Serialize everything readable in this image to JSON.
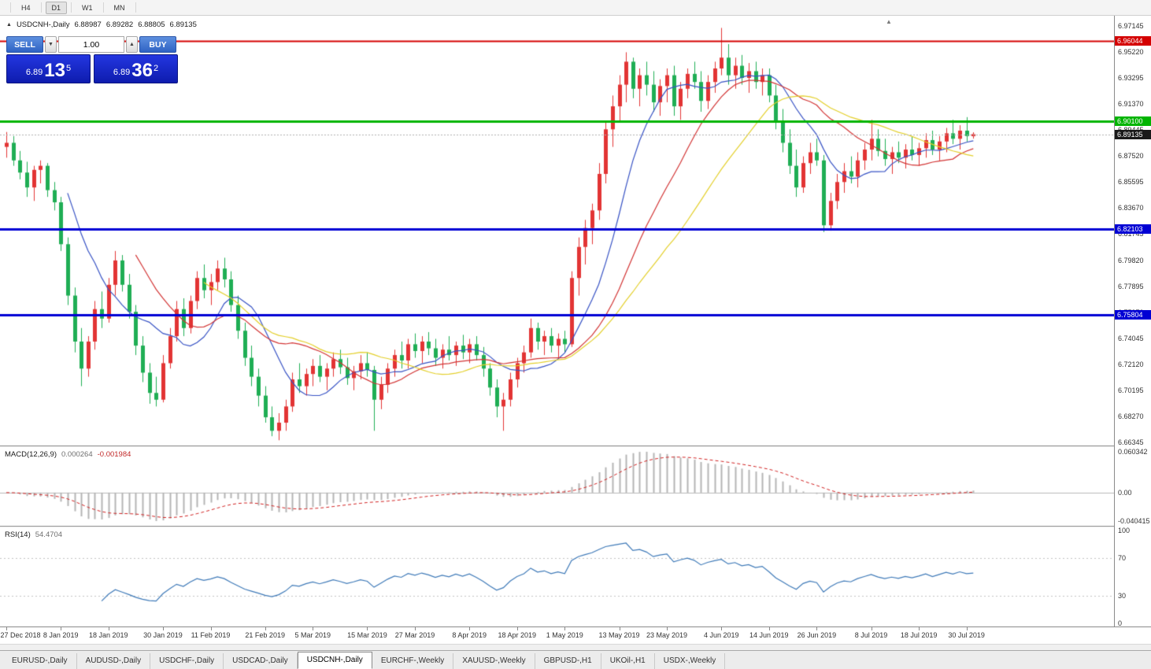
{
  "toolbar": {
    "timeframes": [
      {
        "label": "H4",
        "active": false
      },
      {
        "label": "D1",
        "active": true
      },
      {
        "label": "W1",
        "active": false
      },
      {
        "label": "MN",
        "active": false
      }
    ]
  },
  "chart_header": {
    "collapse_icon": "up-triangle",
    "symbol": "USDCNH-,Daily",
    "open": "6.88987",
    "high": "6.89282",
    "low": "6.88805",
    "close": "6.89135"
  },
  "one_click": {
    "sell_label": "SELL",
    "buy_label": "BUY",
    "lot": "1.00",
    "sell": {
      "base": "6.89",
      "big": "13",
      "sup": "5"
    },
    "buy": {
      "base": "6.89",
      "big": "36",
      "sup": "2"
    }
  },
  "price_axis": {
    "ticks": [
      "6.97145",
      "6.95220",
      "6.93295",
      "6.91370",
      "6.89445",
      "6.87520",
      "6.85595",
      "6.83670",
      "6.81745",
      "6.79820",
      "6.77895",
      "6.75970",
      "6.74045",
      "6.72120",
      "6.70195",
      "6.68270",
      "6.66345"
    ]
  },
  "hlines": [
    {
      "value": 6.96044,
      "label": "6.96044",
      "color": "#d40000",
      "width": 2
    },
    {
      "value": 6.901,
      "label": "6.90100",
      "color": "#00b400",
      "width": 3
    },
    {
      "value": 6.82103,
      "label": "6.82103",
      "color": "#0000d4",
      "width": 3
    },
    {
      "value": 6.75804,
      "label": "6.75804",
      "color": "#0000d4",
      "width": 3
    }
  ],
  "current_price": {
    "value": 6.89135,
    "label": "6.89135",
    "badge_color": "#1a1a1a"
  },
  "indicators": {
    "macd": {
      "title": "MACD(12,26,9)",
      "value_main": "0.000264",
      "value_signal": "-0.001984",
      "axis_max": "0.060342",
      "axis_zero": "0.00",
      "axis_min": "-0.040415"
    },
    "rsi": {
      "title": "RSI(14)",
      "value": "54.4704",
      "axis": [
        "100",
        "70",
        "30",
        "0"
      ],
      "levels": [
        70,
        30
      ]
    }
  },
  "time_axis": {
    "labels": [
      "27 Dec 2018",
      "8 Jan 2019",
      "18 Jan 2019",
      "30 Jan 2019",
      "11 Feb 2019",
      "21 Feb 2019",
      "5 Mar 2019",
      "15 Mar 2019",
      "27 Mar 2019",
      "8 Apr 2019",
      "18 Apr 2019",
      "1 May 2019",
      "13 May 2019",
      "23 May 2019",
      "4 Jun 2019",
      "14 Jun 2019",
      "26 Jun 2019",
      "8 Jul 2019",
      "18 Jul 2019",
      "30 Jul 2019"
    ],
    "indices": [
      0,
      8,
      15,
      23,
      30,
      38,
      45,
      53,
      60,
      68,
      75,
      82,
      90,
      97,
      105,
      112,
      119,
      127,
      134,
      141
    ]
  },
  "tabs": [
    {
      "label": "EURUSD-,Daily",
      "active": false
    },
    {
      "label": "AUDUSD-,Daily",
      "active": false
    },
    {
      "label": "USDCHF-,Daily",
      "active": false
    },
    {
      "label": "USDCAD-,Daily",
      "active": false
    },
    {
      "label": "USDCNH-,Daily",
      "active": true
    },
    {
      "label": "EURCHF-,Weekly",
      "active": false
    },
    {
      "label": "XAUUSD-,Weekly",
      "active": false
    },
    {
      "label": "GBPUSD-,H1",
      "active": false
    },
    {
      "label": "UKOil-,H1",
      "active": false
    },
    {
      "label": "USDX-,Weekly",
      "active": false
    }
  ],
  "chart_data": {
    "type": "candlestick",
    "symbol": "USDCNH",
    "timeframe": "Daily",
    "ylim": [
      6.66345,
      6.97145
    ],
    "up_color": "#e23434",
    "down_color": "#1fae54",
    "moving_averages": [
      {
        "period": 10,
        "color": "#3752c4",
        "name": "MA10"
      },
      {
        "period": 20,
        "color": "#d23434",
        "name": "MA20"
      },
      {
        "period": 30,
        "color": "#e3cf2a",
        "name": "MA30"
      }
    ],
    "macd_params": [
      12,
      26,
      9
    ],
    "rsi_period": 14,
    "candles": [
      [
        6.882,
        6.893,
        6.874,
        6.885
      ],
      [
        6.885,
        6.89,
        6.868,
        6.872
      ],
      [
        6.872,
        6.879,
        6.858,
        6.863
      ],
      [
        6.863,
        6.871,
        6.845,
        6.852
      ],
      [
        6.852,
        6.868,
        6.842,
        6.865
      ],
      [
        6.865,
        6.872,
        6.855,
        6.868
      ],
      [
        6.868,
        6.87,
        6.845,
        6.85
      ],
      [
        6.85,
        6.856,
        6.835,
        6.841
      ],
      [
        6.841,
        6.845,
        6.805,
        6.81
      ],
      [
        6.81,
        6.815,
        6.765,
        6.772
      ],
      [
        6.772,
        6.778,
        6.73,
        6.738
      ],
      [
        6.738,
        6.748,
        6.705,
        6.718
      ],
      [
        6.718,
        6.742,
        6.712,
        6.738
      ],
      [
        6.738,
        6.768,
        6.732,
        6.762
      ],
      [
        6.762,
        6.775,
        6.748,
        6.755
      ],
      [
        6.755,
        6.785,
        6.752,
        6.78
      ],
      [
        6.78,
        6.805,
        6.772,
        6.798
      ],
      [
        6.798,
        6.802,
        6.775,
        6.78
      ],
      [
        6.78,
        6.788,
        6.755,
        6.76
      ],
      [
        6.76,
        6.765,
        6.728,
        6.735
      ],
      [
        6.735,
        6.742,
        6.708,
        6.715
      ],
      [
        6.715,
        6.722,
        6.692,
        6.7
      ],
      [
        6.7,
        6.712,
        6.69,
        6.695
      ],
      [
        6.695,
        6.728,
        6.693,
        6.722
      ],
      [
        6.722,
        6.748,
        6.718,
        6.742
      ],
      [
        6.742,
        6.768,
        6.738,
        6.762
      ],
      [
        6.762,
        6.77,
        6.742,
        6.748
      ],
      [
        6.748,
        6.772,
        6.744,
        6.768
      ],
      [
        6.768,
        6.79,
        6.762,
        6.785
      ],
      [
        6.785,
        6.795,
        6.77,
        6.776
      ],
      [
        6.776,
        6.788,
        6.765,
        6.782
      ],
      [
        6.782,
        6.798,
        6.776,
        6.792
      ],
      [
        6.792,
        6.8,
        6.778,
        6.784
      ],
      [
        6.784,
        6.79,
        6.76,
        6.765
      ],
      [
        6.765,
        6.772,
        6.74,
        6.746
      ],
      [
        6.746,
        6.752,
        6.72,
        6.726
      ],
      [
        6.726,
        6.735,
        6.705,
        6.712
      ],
      [
        6.712,
        6.718,
        6.69,
        6.698
      ],
      [
        6.698,
        6.705,
        6.678,
        6.682
      ],
      [
        6.682,
        6.69,
        6.668,
        6.672
      ],
      [
        6.672,
        6.685,
        6.665,
        6.678
      ],
      [
        6.678,
        6.695,
        6.672,
        6.69
      ],
      [
        6.69,
        6.715,
        6.686,
        6.71
      ],
      [
        6.71,
        6.722,
        6.7,
        6.705
      ],
      [
        6.705,
        6.718,
        6.698,
        6.714
      ],
      [
        6.714,
        6.725,
        6.705,
        6.72
      ],
      [
        6.72,
        6.728,
        6.708,
        6.712
      ],
      [
        6.712,
        6.722,
        6.702,
        6.718
      ],
      [
        6.718,
        6.73,
        6.712,
        6.725
      ],
      [
        6.725,
        6.732,
        6.714,
        6.719
      ],
      [
        6.719,
        6.726,
        6.706,
        6.711
      ],
      [
        6.711,
        6.72,
        6.702,
        6.716
      ],
      [
        6.716,
        6.728,
        6.71,
        6.722
      ],
      [
        6.722,
        6.73,
        6.712,
        6.717
      ],
      [
        6.717,
        6.72,
        6.672,
        6.695
      ],
      [
        6.695,
        6.712,
        6.688,
        6.706
      ],
      [
        6.706,
        6.722,
        6.7,
        6.718
      ],
      [
        6.718,
        6.732,
        6.712,
        6.728
      ],
      [
        6.728,
        6.738,
        6.718,
        6.724
      ],
      [
        6.724,
        6.74,
        6.718,
        6.736
      ],
      [
        6.736,
        6.744,
        6.726,
        6.731
      ],
      [
        6.731,
        6.742,
        6.722,
        6.738
      ],
      [
        6.738,
        6.745,
        6.728,
        6.733
      ],
      [
        6.733,
        6.74,
        6.72,
        6.726
      ],
      [
        6.726,
        6.736,
        6.718,
        6.732
      ],
      [
        6.732,
        6.742,
        6.724,
        6.728
      ],
      [
        6.728,
        6.738,
        6.72,
        6.735
      ],
      [
        6.735,
        6.743,
        6.725,
        6.73
      ],
      [
        6.73,
        6.74,
        6.722,
        6.736
      ],
      [
        6.736,
        6.742,
        6.724,
        6.728
      ],
      [
        6.728,
        6.734,
        6.712,
        6.718
      ],
      [
        6.718,
        6.722,
        6.698,
        6.704
      ],
      [
        6.704,
        6.71,
        6.682,
        6.69
      ],
      [
        6.69,
        6.7,
        6.672,
        6.695
      ],
      [
        6.695,
        6.715,
        6.69,
        6.71
      ],
      [
        6.71,
        6.726,
        6.704,
        6.722
      ],
      [
        6.722,
        6.735,
        6.715,
        6.73
      ],
      [
        6.73,
        6.755,
        6.726,
        6.748
      ],
      [
        6.748,
        6.752,
        6.732,
        6.738
      ],
      [
        6.738,
        6.746,
        6.728,
        6.742
      ],
      [
        6.742,
        6.748,
        6.73,
        6.735
      ],
      [
        6.735,
        6.744,
        6.726,
        6.74
      ],
      [
        6.74,
        6.746,
        6.73,
        6.736
      ],
      [
        6.736,
        6.79,
        6.734,
        6.785
      ],
      [
        6.785,
        6.815,
        6.772,
        6.808
      ],
      [
        6.808,
        6.828,
        6.795,
        6.822
      ],
      [
        6.822,
        6.84,
        6.81,
        6.835
      ],
      [
        6.835,
        6.87,
        6.828,
        6.862
      ],
      [
        6.862,
        6.9,
        6.855,
        6.895
      ],
      [
        6.895,
        6.92,
        6.882,
        6.912
      ],
      [
        6.912,
        6.935,
        6.9,
        6.928
      ],
      [
        6.928,
        6.952,
        6.915,
        6.945
      ],
      [
        6.945,
        6.948,
        6.918,
        6.925
      ],
      [
        6.925,
        6.94,
        6.912,
        6.935
      ],
      [
        6.935,
        6.945,
        6.92,
        6.928
      ],
      [
        6.928,
        6.938,
        6.908,
        6.915
      ],
      [
        6.915,
        6.932,
        6.905,
        6.927
      ],
      [
        6.927,
        6.94,
        6.915,
        6.935
      ],
      [
        6.935,
        6.942,
        6.905,
        6.912
      ],
      [
        6.912,
        6.93,
        6.902,
        6.925
      ],
      [
        6.925,
        6.94,
        6.918,
        6.936
      ],
      [
        6.936,
        6.945,
        6.925,
        6.93
      ],
      [
        6.93,
        6.938,
        6.908,
        6.916
      ],
      [
        6.916,
        6.935,
        6.91,
        6.93
      ],
      [
        6.93,
        6.945,
        6.922,
        6.94
      ],
      [
        6.94,
        6.97,
        6.935,
        6.948
      ],
      [
        6.948,
        6.958,
        6.928,
        6.935
      ],
      [
        6.935,
        6.948,
        6.925,
        6.942
      ],
      [
        6.942,
        6.95,
        6.928,
        6.933
      ],
      [
        6.933,
        6.944,
        6.922,
        6.938
      ],
      [
        6.938,
        6.945,
        6.925,
        6.93
      ],
      [
        6.93,
        6.94,
        6.92,
        6.935
      ],
      [
        6.935,
        6.94,
        6.915,
        6.92
      ],
      [
        6.92,
        6.928,
        6.895,
        6.9
      ],
      [
        6.9,
        6.91,
        6.878,
        6.885
      ],
      [
        6.885,
        6.895,
        6.862,
        6.868
      ],
      [
        6.868,
        6.88,
        6.845,
        6.852
      ],
      [
        6.852,
        6.875,
        6.848,
        6.87
      ],
      [
        6.87,
        6.885,
        6.862,
        6.878
      ],
      [
        6.878,
        6.888,
        6.868,
        6.872
      ],
      [
        6.872,
        6.876,
        6.819,
        6.824
      ],
      [
        6.824,
        6.848,
        6.82,
        6.842
      ],
      [
        6.842,
        6.862,
        6.836,
        6.856
      ],
      [
        6.856,
        6.87,
        6.848,
        6.864
      ],
      [
        6.864,
        6.875,
        6.855,
        6.86
      ],
      [
        6.86,
        6.878,
        6.852,
        6.872
      ],
      [
        6.872,
        6.885,
        6.865,
        6.88
      ],
      [
        6.88,
        6.902,
        6.872,
        6.888
      ],
      [
        6.888,
        6.895,
        6.875,
        6.879
      ],
      [
        6.879,
        6.888,
        6.868,
        6.873
      ],
      [
        6.873,
        6.882,
        6.862,
        6.878
      ],
      [
        6.878,
        6.886,
        6.87,
        6.874
      ],
      [
        6.874,
        6.884,
        6.866,
        6.88
      ],
      [
        6.88,
        6.89,
        6.872,
        6.876
      ],
      [
        6.876,
        6.885,
        6.868,
        6.881
      ],
      [
        6.881,
        6.892,
        6.874,
        6.887
      ],
      [
        6.887,
        6.894,
        6.876,
        6.88
      ],
      [
        6.88,
        6.89,
        6.872,
        6.886
      ],
      [
        6.886,
        6.896,
        6.878,
        6.892
      ],
      [
        6.892,
        6.902,
        6.884,
        6.888
      ],
      [
        6.888,
        6.898,
        6.88,
        6.894
      ],
      [
        6.894,
        6.904,
        6.886,
        6.89
      ],
      [
        6.8899,
        6.8928,
        6.8881,
        6.8914
      ]
    ]
  }
}
